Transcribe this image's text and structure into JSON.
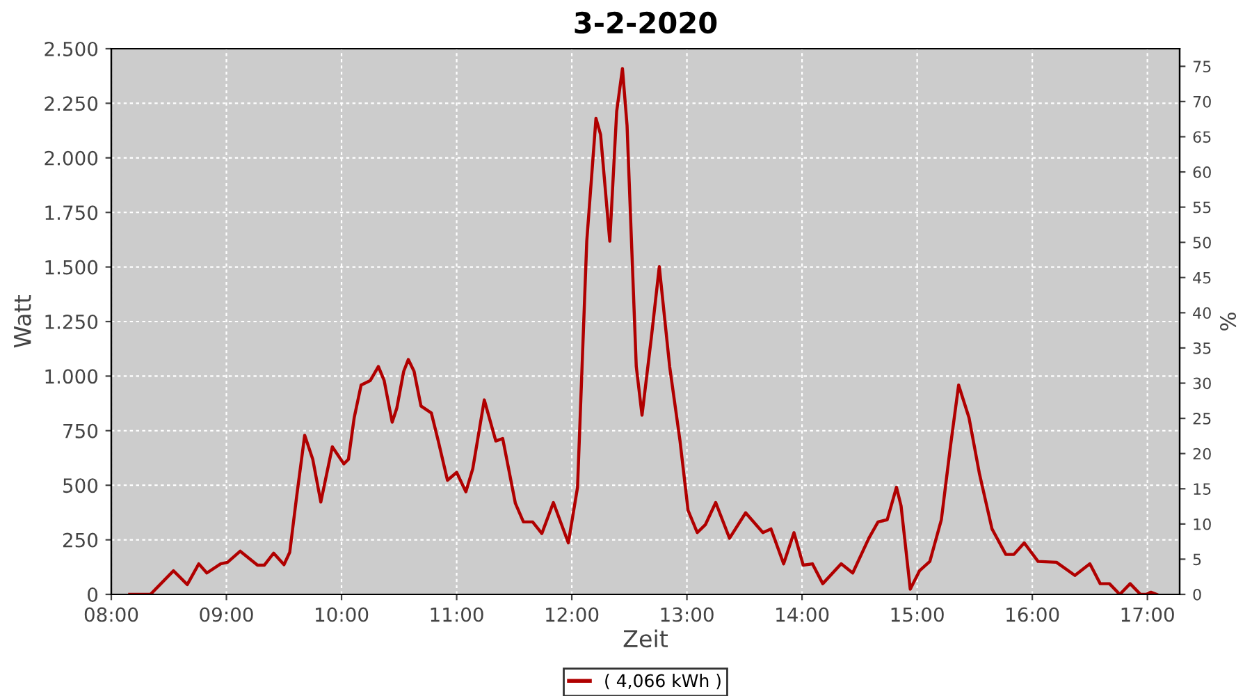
{
  "chart_data": {
    "type": "line",
    "title": "3-2-2020",
    "xlabel": "Zeit",
    "ylabel": "Watt",
    "y2label": "%",
    "x": [
      8.16,
      8.34,
      8.54,
      8.66,
      8.76,
      8.83,
      8.95,
      9.01,
      9.12,
      9.27,
      9.33,
      9.41,
      9.5,
      9.55,
      9.61,
      9.68,
      9.75,
      9.82,
      9.92,
      10.02,
      10.06,
      10.11,
      10.17,
      10.25,
      10.32,
      10.37,
      10.44,
      10.48,
      10.54,
      10.58,
      10.63,
      10.69,
      10.78,
      10.84,
      10.92,
      11.0,
      11.08,
      11.14,
      11.24,
      11.34,
      11.4,
      11.51,
      11.58,
      11.66,
      11.74,
      11.84,
      11.97,
      12.05,
      12.13,
      12.21,
      12.25,
      12.33,
      12.39,
      12.44,
      12.48,
      12.56,
      12.61,
      12.69,
      12.76,
      12.85,
      12.94,
      13.01,
      13.09,
      13.16,
      13.25,
      13.37,
      13.51,
      13.66,
      13.73,
      13.84,
      13.93,
      14.01,
      14.09,
      14.18,
      14.34,
      14.44,
      14.58,
      14.66,
      14.74,
      14.82,
      14.86,
      14.94,
      15.02,
      15.11,
      15.21,
      15.29,
      15.36,
      15.45,
      15.54,
      15.65,
      15.77,
      15.84,
      15.93,
      16.05,
      16.21,
      16.37,
      16.5,
      16.59,
      16.67,
      16.76,
      16.85,
      16.94,
      16.99,
      17.03,
      17.08
    ],
    "series": [
      {
        "name": "( 4,066 kWh )",
        "color": "#b00000",
        "values": [
          0,
          0,
          108,
          45,
          140,
          98,
          140,
          147,
          198,
          134,
          134,
          189,
          136,
          193,
          448,
          729,
          619,
          423,
          676,
          598,
          619,
          810,
          959,
          980,
          1044,
          980,
          789,
          853,
          1022,
          1076,
          1022,
          863,
          831,
          703,
          523,
          559,
          470,
          576,
          891,
          703,
          714,
          417,
          332,
          332,
          279,
          421,
          236,
          491,
          1618,
          2181,
          2107,
          1618,
          2213,
          2409,
          2149,
          1044,
          821,
          1172,
          1501,
          1044,
          703,
          385,
          283,
          319,
          421,
          257,
          374,
          283,
          300,
          140,
          283,
          134,
          140,
          49,
          140,
          98,
          257,
          332,
          342,
          491,
          406,
          24,
          108,
          151,
          342,
          682,
          959,
          810,
          555,
          300,
          183,
          183,
          236,
          151,
          147,
          87,
          140,
          49,
          49,
          0,
          49,
          0,
          0,
          10,
          0
        ]
      }
    ],
    "xlim": [
      8.0,
      17.28
    ],
    "xticks": [
      {
        "value": 8,
        "label": "08:00"
      },
      {
        "value": 9,
        "label": "09:00"
      },
      {
        "value": 10,
        "label": "10:00"
      },
      {
        "value": 11,
        "label": "11:00"
      },
      {
        "value": 12,
        "label": "12:00"
      },
      {
        "value": 13,
        "label": "13:00"
      },
      {
        "value": 14,
        "label": "14:00"
      },
      {
        "value": 15,
        "label": "15:00"
      },
      {
        "value": 16,
        "label": "16:00"
      },
      {
        "value": 17,
        "label": "17:00"
      }
    ],
    "ylim": [
      0,
      2500
    ],
    "yticks": [
      {
        "value": 0,
        "label": "0"
      },
      {
        "value": 250,
        "label": "250"
      },
      {
        "value": 500,
        "label": "500"
      },
      {
        "value": 750,
        "label": "750"
      },
      {
        "value": 1000,
        "label": "1.000"
      },
      {
        "value": 1250,
        "label": "1.250"
      },
      {
        "value": 1500,
        "label": "1.500"
      },
      {
        "value": 1750,
        "label": "1.750"
      },
      {
        "value": 2000,
        "label": "2.000"
      },
      {
        "value": 2250,
        "label": "2.250"
      },
      {
        "value": 2500,
        "label": "2.500"
      }
    ],
    "y2lim": [
      0,
      77.5
    ],
    "y2ticks": [
      0,
      5,
      10,
      15,
      20,
      25,
      30,
      35,
      40,
      45,
      50,
      55,
      60,
      65,
      70,
      75
    ],
    "grid": true,
    "legend": "bottom",
    "marker": "none",
    "line_style": "solid"
  }
}
